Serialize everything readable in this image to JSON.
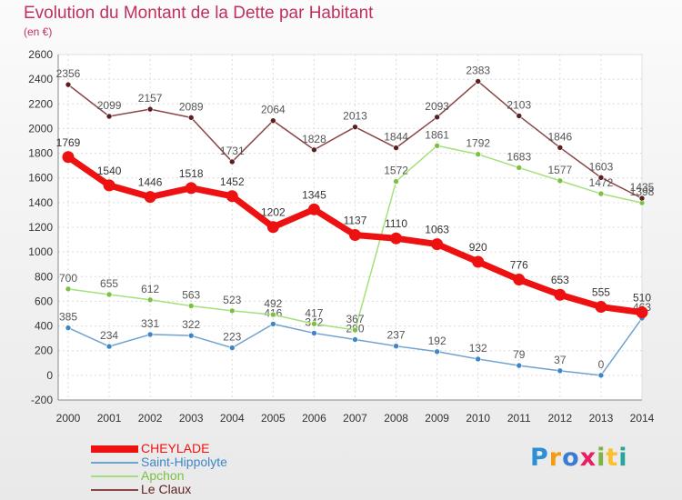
{
  "header": {
    "title": "Evolution du Montant de la Dette par Habitant",
    "unit": "(en €)"
  },
  "logo": {
    "text": "Proxiti",
    "colors": [
      "#2c8fd6",
      "#f39c12",
      "#3b7bd4",
      "#e91e63",
      "#7cb342",
      "#fbc02d",
      "#26a69a"
    ]
  },
  "chart_data": {
    "type": "line",
    "title": "Evolution du Montant de la Dette par Habitant",
    "ylabel": "(en €)",
    "xlabel": "",
    "categories": [
      "2000",
      "2001",
      "2002",
      "2003",
      "2004",
      "2005",
      "2006",
      "2007",
      "2008",
      "2009",
      "2010",
      "2011",
      "2012",
      "2013",
      "2014"
    ],
    "ylim": [
      -200,
      2600
    ],
    "yticks": [
      -200,
      0,
      200,
      400,
      600,
      800,
      1000,
      1200,
      1400,
      1600,
      1800,
      2000,
      2200,
      2400,
      2600
    ],
    "grid": true,
    "legend_position": "bottom-left",
    "series": [
      {
        "name": "CHEYLADE",
        "color": "#ee1111",
        "marker": "#ee1111",
        "label_color": "#333333",
        "thick": true,
        "values": [
          1769,
          1540,
          1446,
          1518,
          1452,
          1202,
          1345,
          1137,
          1110,
          1063,
          920,
          776,
          653,
          555,
          510
        ]
      },
      {
        "name": "Saint-Hippolyte",
        "color": "#6fa2cf",
        "marker": "#3f86c8",
        "label_color": "#555555",
        "thick": false,
        "values": [
          385,
          234,
          331,
          322,
          223,
          416,
          342,
          290,
          237,
          192,
          132,
          79,
          37,
          0,
          463
        ]
      },
      {
        "name": "Apchon",
        "color": "#a5e07a",
        "marker": "#7cc142",
        "label_color": "#555555",
        "thick": false,
        "values": [
          700,
          655,
          612,
          563,
          523,
          492,
          417,
          367,
          1572,
          1861,
          1792,
          1683,
          1577,
          1472,
          1398
        ]
      },
      {
        "name": "Le Claux",
        "color": "#8a4545",
        "marker": "#5c1f1f",
        "label_color": "#555555",
        "thick": false,
        "values": [
          2356,
          2099,
          2157,
          2089,
          1731,
          2064,
          1828,
          2013,
          1844,
          2093,
          2383,
          2103,
          1846,
          1603,
          1435
        ]
      }
    ]
  }
}
